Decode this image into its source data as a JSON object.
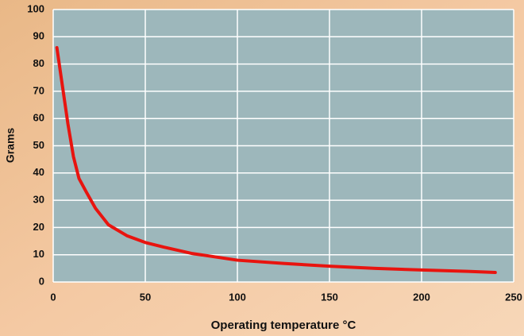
{
  "chart_data": {
    "type": "line",
    "x_label": "Operating temperature °C",
    "y_label": "Grams",
    "x": [
      2,
      5,
      8,
      11,
      14,
      18,
      23,
      30,
      40,
      50,
      60,
      75,
      100,
      125,
      150,
      175,
      200,
      225,
      240
    ],
    "series": [
      {
        "color": "#e8140f",
        "values": [
          86,
          72,
          58,
          46,
          38,
          33,
          27,
          21,
          17,
          14.5,
          12.8,
          10.5,
          8,
          6.8,
          5.8,
          5,
          4.4,
          3.9,
          3.5
        ]
      }
    ],
    "xlim": [
      0,
      250
    ],
    "xticks": [
      0,
      50,
      100,
      150,
      200,
      250
    ],
    "ylim": [
      0,
      100
    ],
    "yticks": [
      0,
      10,
      20,
      30,
      40,
      50,
      60,
      70,
      80,
      90,
      100
    ],
    "grid": true
  }
}
